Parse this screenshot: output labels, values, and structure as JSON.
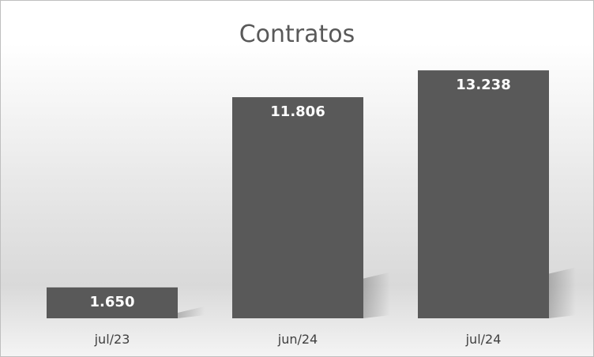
{
  "chart_data": {
    "type": "bar",
    "title": "Contratos",
    "categories": [
      "jul/23",
      "jun/24",
      "jul/24"
    ],
    "values": [
      1650,
      11806,
      13238
    ],
    "data_labels": [
      "1.650",
      "11.806",
      "13.238"
    ],
    "ylim": [
      0,
      14000
    ],
    "grid": false,
    "legend": "none",
    "bar_color": "#595959",
    "label_color": "#ffffff"
  }
}
